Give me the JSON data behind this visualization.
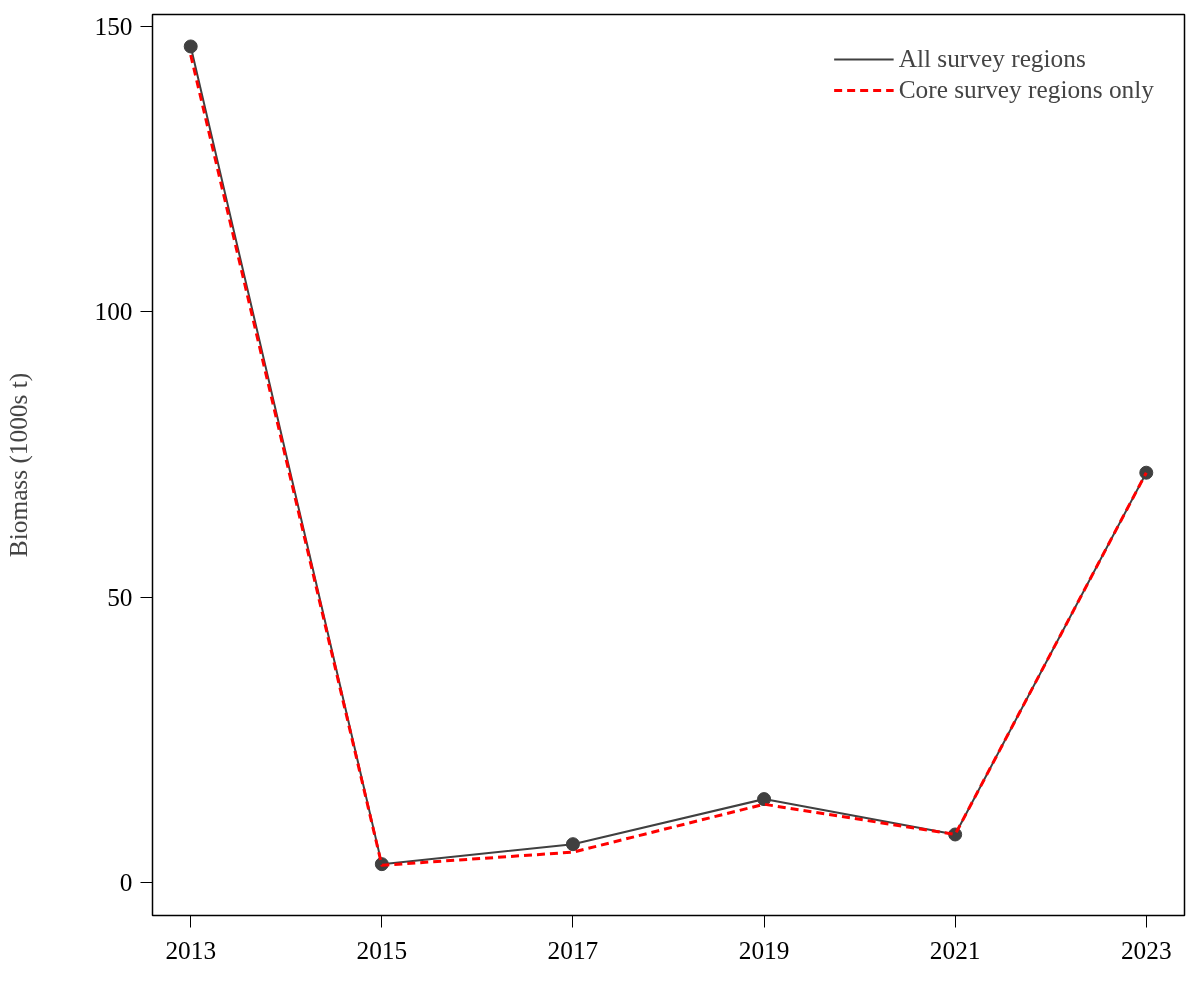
{
  "chart_data": {
    "type": "line",
    "ylabel": "Biomass (1000s t)",
    "x": [
      2013,
      2015,
      2017,
      2019,
      2021,
      2023
    ],
    "series": [
      {
        "name": "All survey regions",
        "color": "#404040",
        "values": [
          146.5,
          3.2,
          6.7,
          14.6,
          8.4,
          71.8
        ],
        "marker": "circle",
        "line_style": "solid"
      },
      {
        "name": "Core survey regions only",
        "color": "#ff0000",
        "values": [
          145.0,
          3.0,
          5.3,
          13.7,
          8.4,
          71.8
        ],
        "marker": "none",
        "line_style": "dashed"
      }
    ],
    "xlim": [
      2012.6,
      2023.4
    ],
    "xticks": [
      2013,
      2015,
      2017,
      2019,
      2021,
      2023
    ],
    "ylim": [
      -5.8,
      152.1
    ],
    "yticks": [
      0,
      50,
      100,
      150
    ],
    "grid": false,
    "legend": "top right"
  }
}
